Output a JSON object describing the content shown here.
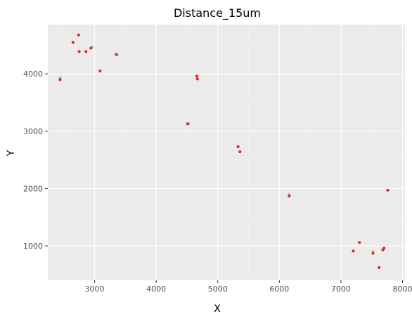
{
  "chart_data": {
    "type": "scatter",
    "title": "Distance_15um",
    "xlabel": "X",
    "ylabel": "Y",
    "xlim": [
      2240,
      8040
    ],
    "ylim": [
      400,
      4860
    ],
    "xticks": [
      3000,
      4000,
      5000,
      6000,
      7000,
      8000
    ],
    "yticks": [
      1000,
      2000,
      3000,
      4000
    ],
    "grid": true,
    "legend": "none",
    "colors": {
      "panel": "#ebebeb",
      "grid_major": "#ffffff",
      "grid_minor": "#f4f4f4",
      "point_red": "#d62728",
      "point_green": "#8fcf9e"
    },
    "series": [
      {
        "color": "#d62728",
        "points": [
          {
            "x": 2740,
            "y": 4680
          },
          {
            "x": 2650,
            "y": 4550
          },
          {
            "x": 2750,
            "y": 4390
          },
          {
            "x": 2860,
            "y": 4390
          },
          {
            "x": 2940,
            "y": 4450
          },
          {
            "x": 3350,
            "y": 4340
          },
          {
            "x": 3090,
            "y": 4050
          },
          {
            "x": 2440,
            "y": 3900
          },
          {
            "x": 4660,
            "y": 3960
          },
          {
            "x": 4670,
            "y": 3910
          },
          {
            "x": 4510,
            "y": 3130
          },
          {
            "x": 5330,
            "y": 2730
          },
          {
            "x": 5360,
            "y": 2640
          },
          {
            "x": 6160,
            "y": 1870
          },
          {
            "x": 7760,
            "y": 1970
          },
          {
            "x": 7300,
            "y": 1060
          },
          {
            "x": 7200,
            "y": 910
          },
          {
            "x": 7520,
            "y": 870
          },
          {
            "x": 7680,
            "y": 930
          },
          {
            "x": 7700,
            "y": 960
          },
          {
            "x": 7620,
            "y": 620
          }
        ]
      },
      {
        "color": "#8fcf9e",
        "points": [
          {
            "x": 2440,
            "y": 3930
          },
          {
            "x": 2960,
            "y": 4470
          },
          {
            "x": 3370,
            "y": 4330
          },
          {
            "x": 4530,
            "y": 3130
          },
          {
            "x": 6160,
            "y": 1900
          },
          {
            "x": 7520,
            "y": 900
          }
        ]
      }
    ]
  }
}
